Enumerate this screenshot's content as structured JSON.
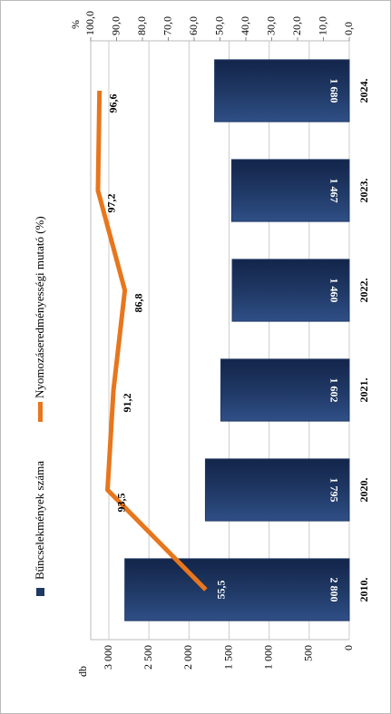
{
  "chart_data": {
    "type": "bar",
    "categories": [
      "2010.",
      "2020.",
      "2021.",
      "2022.",
      "2023.",
      "2024."
    ],
    "series": [
      {
        "name": "Bűncselekmények száma",
        "color": "#1f3864",
        "values": [
          2800,
          1795,
          1602,
          1460,
          1467,
          1680
        ],
        "value_labels": [
          "2 800",
          "1 795",
          "1 602",
          "1 460",
          "1 467",
          "1 680"
        ]
      },
      {
        "name": "Nyomozáseredményességi mutató (%)",
        "type": "line",
        "axis": "y2",
        "color": "#e8761c",
        "values": [
          55.5,
          93.5,
          91.2,
          86.8,
          97.2,
          96.6
        ],
        "value_labels": [
          "55,5",
          "93,5",
          "91,2",
          "86,8",
          "97,2",
          "96,6"
        ]
      }
    ],
    "ylabel": "db",
    "y2label": "%",
    "ylim": [
      0,
      3000
    ],
    "yticks": [
      0,
      500,
      {
        "value": 1000,
        "label": "1 000"
      },
      {
        "value": 1500,
        "label": "1 500"
      },
      {
        "value": 2000,
        "label": "2 000"
      },
      {
        "value": 2500,
        "label": "2 500"
      },
      {
        "value": 3000,
        "label": "3 000"
      }
    ],
    "y2lim": [
      0,
      100
    ],
    "y2ticks": [
      {
        "value": 0,
        "label": "0,0"
      },
      {
        "value": 10,
        "label": "10,0"
      },
      {
        "value": 20,
        "label": "20,0"
      },
      {
        "value": 30,
        "label": "30,0"
      },
      {
        "value": 40,
        "label": "40,0"
      },
      {
        "value": 50,
        "label": "50,0"
      },
      {
        "value": 60,
        "label": "60,0"
      },
      {
        "value": 70,
        "label": "70,0"
      },
      {
        "value": 80,
        "label": "80,0"
      },
      {
        "value": 90,
        "label": "90,0"
      },
      {
        "value": 100,
        "label": "100,0"
      }
    ],
    "grid": true
  }
}
